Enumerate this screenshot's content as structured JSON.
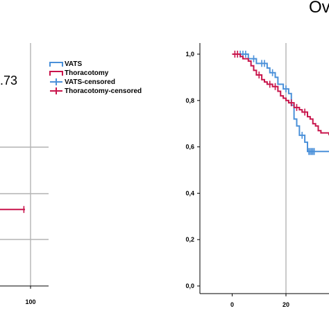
{
  "figure": {
    "title_fragment": "Ov",
    "annotation_fragment": ".73"
  },
  "legend": {
    "entries": [
      {
        "label": "VATS",
        "color": "#4a90d9",
        "kind": "step"
      },
      {
        "label": "Thoracotomy",
        "color": "#c8144b",
        "kind": "step"
      },
      {
        "label": "VATS-censored",
        "color": "#4a90d9",
        "kind": "censor"
      },
      {
        "label": "Thoracotomy-censored",
        "color": "#c8144b",
        "kind": "censor"
      }
    ]
  },
  "chart_data": [
    {
      "type": "line",
      "panel": "left (cropped)",
      "xlabel": "",
      "ylabel": "",
      "x_ticks": [
        "100"
      ],
      "grid": true,
      "series": [
        {
          "name": "Thoracotomy",
          "color": "#c8144b",
          "x": [
            0,
            90
          ],
          "y": [
            0.33,
            0.33
          ],
          "censored_x": [
            88
          ]
        }
      ]
    },
    {
      "type": "line",
      "panel": "right",
      "xlabel": "",
      "ylabel": "",
      "xlim": [
        -12,
        36
      ],
      "ylim": [
        0,
        1
      ],
      "x_ticks": [
        "0",
        "20"
      ],
      "y_ticks": [
        "0,0",
        "0,2",
        "0,4",
        "0,6",
        "0,8",
        "1,0"
      ],
      "grid": true,
      "series": [
        {
          "name": "VATS",
          "color": "#4a90d9",
          "x": [
            0,
            6,
            7,
            9,
            13,
            14,
            16,
            17,
            19,
            21,
            22,
            23,
            24,
            25,
            27,
            28,
            36
          ],
          "y": [
            1.0,
            0.98,
            0.98,
            0.96,
            0.94,
            0.92,
            0.9,
            0.87,
            0.85,
            0.83,
            0.78,
            0.72,
            0.69,
            0.65,
            0.62,
            0.58,
            0.58
          ],
          "censored_x": [
            3,
            4,
            5,
            8,
            11,
            12,
            15,
            20,
            26,
            28.5,
            29,
            29.5,
            30,
            30.5
          ]
        },
        {
          "name": "Thoracotomy",
          "color": "#c8144b",
          "x": [
            0,
            3,
            4,
            6,
            7,
            8,
            9,
            11,
            12,
            13,
            15,
            17,
            18,
            19,
            20,
            21,
            23,
            25,
            26,
            28,
            29,
            30,
            31,
            32,
            33,
            36
          ],
          "y": [
            1.0,
            0.99,
            0.98,
            0.97,
            0.95,
            0.93,
            0.91,
            0.89,
            0.88,
            0.87,
            0.86,
            0.84,
            0.82,
            0.81,
            0.8,
            0.79,
            0.77,
            0.76,
            0.75,
            0.73,
            0.72,
            0.7,
            0.69,
            0.67,
            0.66,
            0.65
          ],
          "censored_x": [
            1,
            2,
            10,
            14,
            16,
            22,
            24,
            27
          ]
        }
      ]
    }
  ]
}
